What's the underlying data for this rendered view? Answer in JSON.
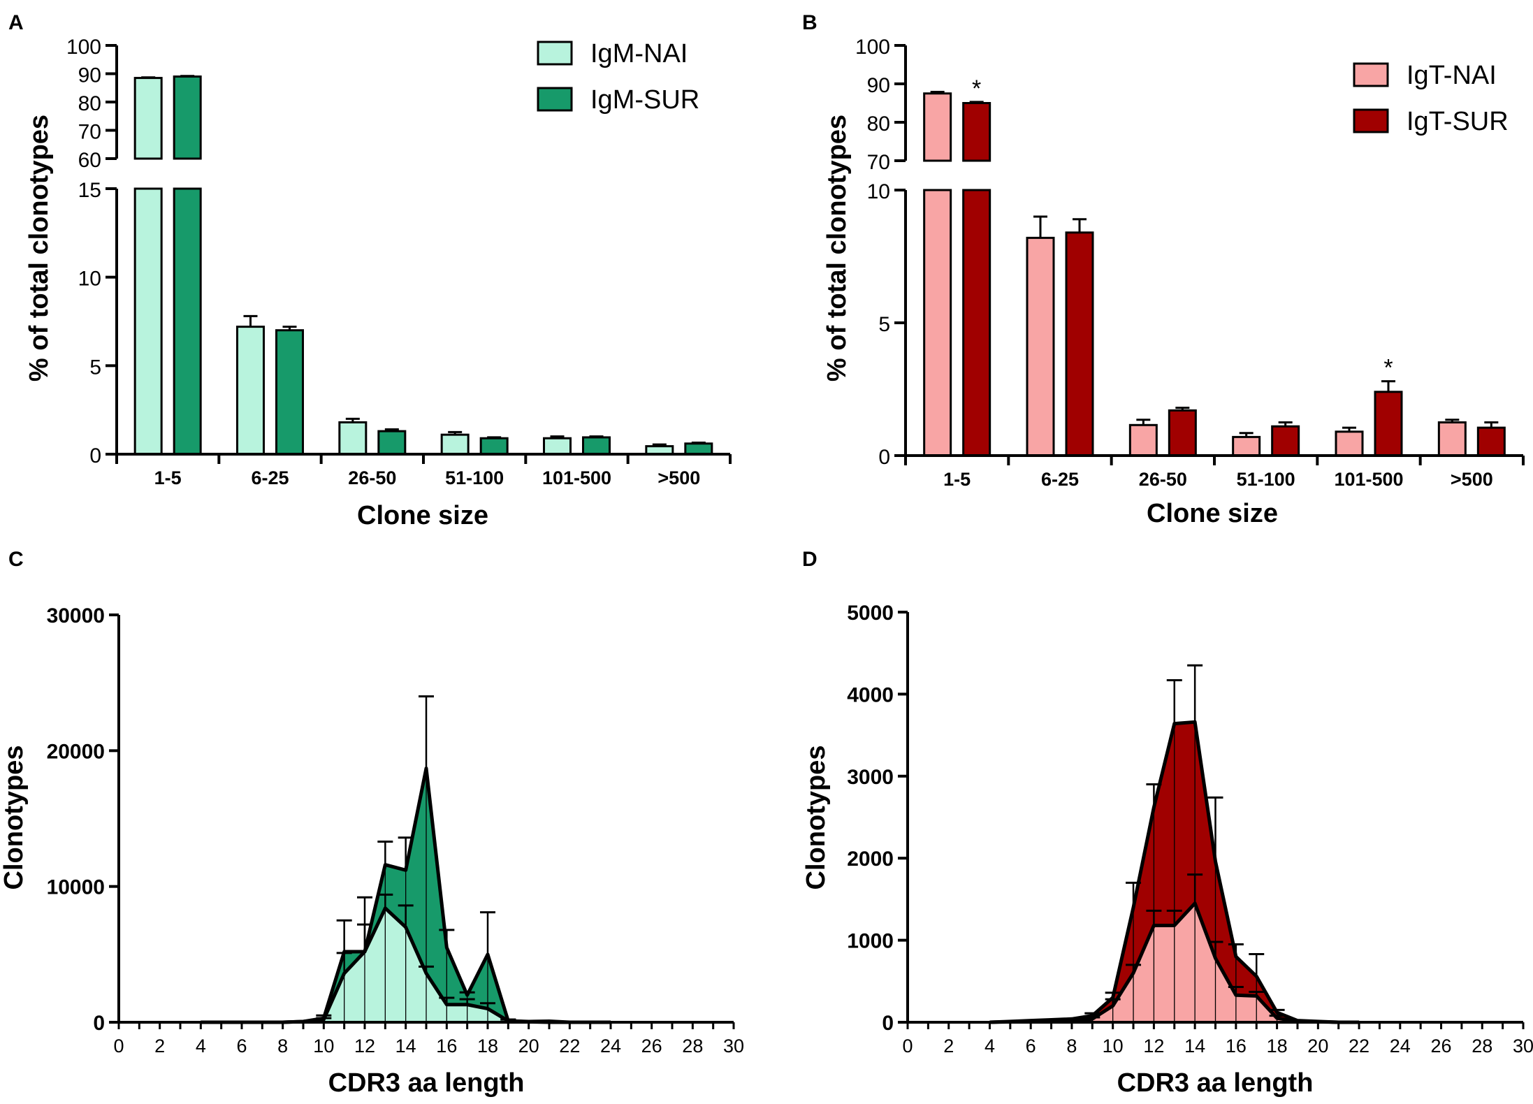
{
  "chart_data": [
    {
      "panel": "A",
      "type": "bar",
      "categories": [
        "1-5",
        "6-25",
        "26-50",
        "51-100",
        "101-500",
        ">500"
      ],
      "series": [
        {
          "name": "IgM-NAI",
          "values": [
            88.5,
            7.2,
            1.8,
            1.1,
            0.9,
            0.45
          ],
          "errors": [
            0.2,
            0.6,
            0.2,
            0.15,
            0.1,
            0.1
          ],
          "color": "#b8f3dd"
        },
        {
          "name": "IgM-SUR",
          "values": [
            89.0,
            7.0,
            1.3,
            0.9,
            0.95,
            0.6
          ],
          "errors": [
            0.2,
            0.2,
            0.1,
            0.05,
            0.05,
            0.05
          ],
          "color": "#179a6a"
        }
      ],
      "xlabel": "Clone size",
      "ylabel": "% of total clonotypes",
      "broken_axis": {
        "lower": [
          0,
          15
        ],
        "upper": [
          60,
          100
        ]
      },
      "lower_ticks": [
        0,
        5,
        10,
        15
      ],
      "upper_ticks": [
        60,
        70,
        80,
        90,
        100
      ],
      "significance": []
    },
    {
      "panel": "B",
      "type": "bar",
      "categories": [
        "1-5",
        "6-25",
        "26-50",
        "51-100",
        "101-500",
        ">500"
      ],
      "series": [
        {
          "name": "IgT-NAI",
          "values": [
            87.5,
            8.2,
            1.15,
            0.7,
            0.9,
            1.25
          ],
          "errors": [
            0.4,
            0.8,
            0.2,
            0.15,
            0.15,
            0.1
          ],
          "color": "#f8a5a5"
        },
        {
          "name": "IgT-SUR",
          "values": [
            85.0,
            8.4,
            1.7,
            1.1,
            2.4,
            1.05
          ],
          "errors": [
            0.3,
            0.5,
            0.1,
            0.15,
            0.4,
            0.2
          ],
          "color": "#a00000"
        }
      ],
      "xlabel": "Clone size",
      "ylabel": "% of total clonotypes",
      "broken_axis": {
        "lower": [
          0,
          10
        ],
        "upper": [
          70,
          100
        ]
      },
      "lower_ticks": [
        0,
        5,
        10
      ],
      "upper_ticks": [
        70,
        80,
        90,
        100
      ],
      "significance": [
        {
          "category": "1-5",
          "series": "IgT-SUR",
          "mark": "*"
        },
        {
          "category": "101-500",
          "series": "IgT-SUR",
          "mark": "*"
        }
      ]
    },
    {
      "panel": "C",
      "type": "area",
      "x": [
        4,
        5,
        6,
        7,
        8,
        9,
        10,
        11,
        12,
        13,
        14,
        15,
        16,
        17,
        18,
        19,
        20,
        21,
        22,
        23,
        24
      ],
      "series": [
        {
          "name": "IgM-NAI",
          "values": [
            0,
            0,
            0,
            0,
            0,
            50,
            200,
            3600,
            5200,
            8400,
            7000,
            3600,
            1300,
            1300,
            1000,
            100,
            30,
            0,
            0,
            0,
            0
          ],
          "errors": [
            0,
            0,
            0,
            0,
            0,
            0,
            100,
            1500,
            2000,
            1000,
            1600,
            500,
            500,
            400,
            400,
            100,
            0,
            0,
            0,
            0,
            0
          ],
          "color": "#b8f3dd"
        },
        {
          "name": "IgM-SUR",
          "values": [
            0,
            0,
            0,
            0,
            0,
            50,
            300,
            5200,
            5200,
            11600,
            11200,
            18700,
            5500,
            2000,
            5000,
            100,
            50,
            80,
            0,
            0,
            0
          ],
          "errors": [
            0,
            0,
            0,
            0,
            0,
            0,
            200,
            2300,
            4000,
            1700,
            2400,
            5300,
            1300,
            200,
            3100,
            100,
            50,
            0,
            0,
            0,
            0
          ],
          "color": "#179a6a"
        }
      ],
      "xlabel": "CDR3 aa length",
      "ylabel": "Clonotypes",
      "xlim": [
        0,
        30
      ],
      "ylim": [
        0,
        30000
      ],
      "xticks": [
        0,
        2,
        4,
        6,
        8,
        10,
        12,
        14,
        16,
        18,
        20,
        22,
        24,
        26,
        28,
        30
      ],
      "yticks": [
        0,
        10000,
        20000,
        30000
      ]
    },
    {
      "panel": "D",
      "type": "area",
      "x": [
        4,
        5,
        6,
        7,
        8,
        9,
        10,
        11,
        12,
        13,
        14,
        15,
        16,
        17,
        18,
        19,
        20,
        21,
        22
      ],
      "series": [
        {
          "name": "IgT-NAI",
          "values": [
            0,
            5,
            10,
            15,
            20,
            40,
            200,
            600,
            1180,
            1180,
            1450,
            780,
            330,
            320,
            50,
            10,
            5,
            0,
            0
          ],
          "errors": [
            0,
            0,
            0,
            0,
            0,
            20,
            80,
            100,
            180,
            180,
            350,
            200,
            100,
            50,
            30,
            0,
            0,
            0,
            0
          ],
          "color": "#f8a5a5"
        },
        {
          "name": "IgT-SUR",
          "values": [
            0,
            10,
            20,
            30,
            40,
            80,
            300,
            1400,
            2620,
            3640,
            3660,
            1960,
            800,
            560,
            120,
            20,
            10,
            0,
            0
          ],
          "errors": [
            0,
            0,
            0,
            0,
            0,
            30,
            60,
            300,
            280,
            530,
            690,
            780,
            150,
            270,
            30,
            0,
            0,
            0,
            0
          ],
          "color": "#a00000"
        }
      ],
      "xlabel": "CDR3 aa length",
      "ylabel": "Clonotypes",
      "xlim": [
        0,
        30
      ],
      "ylim": [
        0,
        5000
      ],
      "xticks": [
        0,
        2,
        4,
        6,
        8,
        10,
        12,
        14,
        16,
        18,
        20,
        22,
        24,
        26,
        28,
        30
      ],
      "yticks": [
        0,
        1000,
        2000,
        3000,
        4000,
        5000
      ]
    }
  ]
}
